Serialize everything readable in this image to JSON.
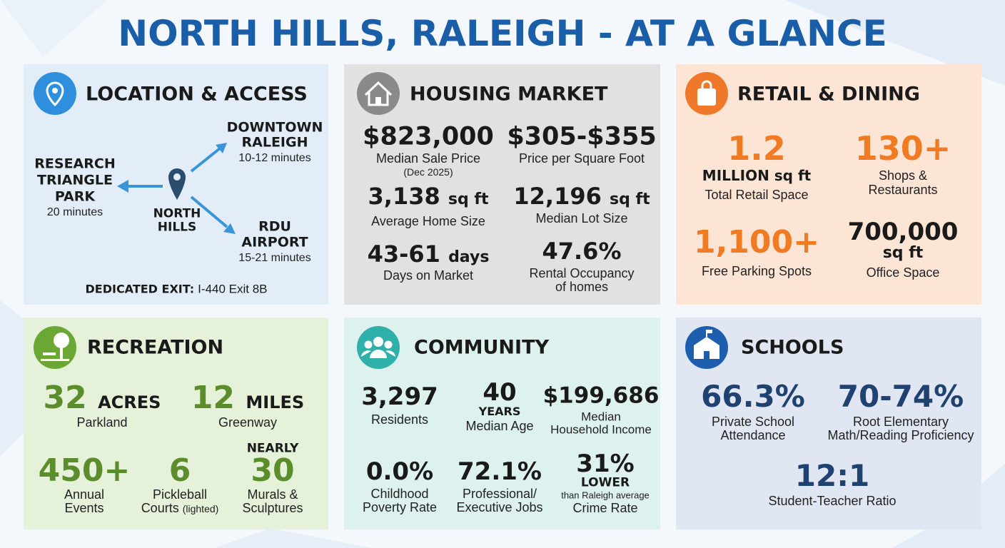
{
  "title": "NORTH HILLS, RALEIGH - AT A GLANCE",
  "location": {
    "title": "LOCATION & ACCESS",
    "research": {
      "name": [
        "RESEARCH",
        "TRIANGLE",
        "PARK"
      ],
      "time": "20 minutes"
    },
    "downtown": {
      "name": [
        "DOWNTOWN",
        "RALEIGH"
      ],
      "time": "10-12 minutes"
    },
    "airport": {
      "name": [
        "RDU",
        "AIRPORT"
      ],
      "time": "15-21 minutes"
    },
    "center": [
      "NORTH",
      "HILLS"
    ],
    "exit_label": "DEDICATED EXIT:",
    "exit_value": "I-440 Exit 8B"
  },
  "housing": {
    "title": "HOUSING MARKET",
    "stats": [
      {
        "value": "$823,000",
        "label": [
          "Median Sale Price"
        ],
        "note": "(Dec 2025)"
      },
      {
        "value": "$305-$355",
        "label": [
          "Price per Square Foot"
        ]
      },
      {
        "value": "3,138",
        "unit": "sq ft",
        "label": [
          "Average Home Size"
        ]
      },
      {
        "value": "12,196",
        "unit": "sq ft",
        "label": [
          "Median Lot Size"
        ]
      },
      {
        "value": "43-61",
        "unit": "days",
        "label": [
          "Days on Market"
        ]
      },
      {
        "value": "47.6%",
        "label": [
          "Rental Occupancy",
          "of homes"
        ]
      }
    ]
  },
  "retail": {
    "title": "RETAIL & DINING",
    "stats": [
      {
        "value": "1.2",
        "unit": "MILLION sq ft",
        "label": [
          "Total Retail Space"
        ]
      },
      {
        "value": "130+",
        "label": [
          "Shops &",
          "Restaurants"
        ]
      },
      {
        "value": "1,100+",
        "label": [
          "Free Parking Spots"
        ]
      },
      {
        "value": "700,000",
        "unit": "sq ft",
        "label": [
          "Office Space"
        ]
      }
    ]
  },
  "recreation": {
    "title": "RECREATION",
    "stats": [
      {
        "value": "32",
        "unit": "ACRES",
        "label": [
          "Parkland"
        ]
      },
      {
        "value": "12",
        "unit": "MILES",
        "label": [
          "Greenway"
        ]
      },
      {
        "value": "450+",
        "label": [
          "Annual",
          "Events"
        ]
      },
      {
        "value": "6",
        "label": [
          "Pickleball",
          "Courts"
        ],
        "note": "(lighted)"
      },
      {
        "qualifier": "NEARLY",
        "value": "30",
        "label": [
          "Murals &",
          "Sculptures"
        ]
      }
    ]
  },
  "community": {
    "title": "COMMUNITY",
    "stats": [
      {
        "value": "3,297",
        "label": [
          "Residents"
        ]
      },
      {
        "value": "40",
        "unit": "YEARS",
        "label": [
          "Median Age"
        ]
      },
      {
        "value": "$199,686",
        "label": [
          "Median",
          "Household Income"
        ]
      },
      {
        "value": "0.0%",
        "label": [
          "Childhood",
          "Poverty Rate"
        ]
      },
      {
        "value": "72.1%",
        "label": [
          "Professional/",
          "Executive Jobs"
        ]
      },
      {
        "value": "31%",
        "unit": "LOWER",
        "note": "than Raleigh average",
        "label": [
          "Crime Rate"
        ]
      }
    ]
  },
  "schools": {
    "title": "SCHOOLS",
    "stats": [
      {
        "value": "66.3%",
        "label": [
          "Private School",
          "Attendance"
        ]
      },
      {
        "value": "70-74%",
        "label": [
          "Root Elementary",
          "Math/Reading Proficiency"
        ]
      },
      {
        "value": "12:1",
        "label": [
          "Student-Teacher Ratio"
        ]
      }
    ]
  }
}
